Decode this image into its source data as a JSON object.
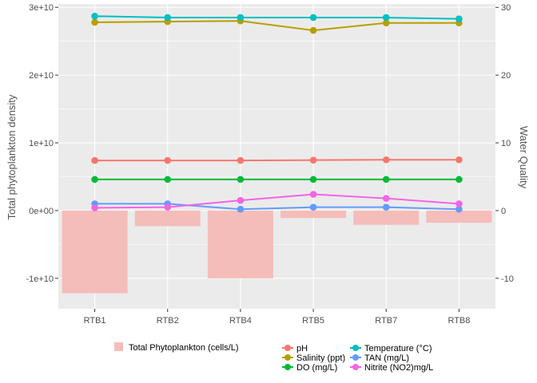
{
  "chart_data": {
    "type": "bar+line",
    "categories": [
      "RTB1",
      "RTB2",
      "RTB4",
      "RTB5",
      "RTB7",
      "RTB8"
    ],
    "bar_series": {
      "name": "Total Phytoplankton (cells/L)",
      "color": "#F4BDBA",
      "values": [
        -12200000000.0,
        -2300000000.0,
        -10000000000.0,
        -1100000000.0,
        -2100000000.0,
        -1800000000.0
      ]
    },
    "line_series": [
      {
        "name": "pH",
        "color": "#F8766D",
        "values": [
          7.4,
          7.4,
          7.4,
          7.45,
          7.5,
          7.5
        ]
      },
      {
        "name": "Salinity (ppt)",
        "color": "#B79F00",
        "values": [
          27.8,
          27.9,
          28.0,
          26.6,
          27.7,
          27.7
        ]
      },
      {
        "name": "DO (mg/L)",
        "color": "#00BA38",
        "values": [
          4.6,
          4.6,
          4.6,
          4.6,
          4.6,
          4.6
        ]
      },
      {
        "name": "Temperature (°C)",
        "color": "#00BFC4",
        "values": [
          28.7,
          28.5,
          28.5,
          28.5,
          28.5,
          28.3
        ]
      },
      {
        "name": "TAN (mg/L)",
        "color": "#619CFF",
        "values": [
          1.0,
          1.0,
          0.2,
          0.5,
          0.5,
          0.2
        ]
      },
      {
        "name": "Nitrite (NO2)mg/L",
        "color": "#F564E3",
        "values": [
          0.4,
          0.5,
          1.5,
          2.4,
          1.8,
          1.0
        ]
      }
    ],
    "y_left": {
      "label": "Total phytoplankton density",
      "lim": [
        -14500000000.0,
        30500000000.0
      ],
      "ticks": [
        -10000000000.0,
        0,
        10000000000.0,
        20000000000.0,
        30000000000.0
      ],
      "tick_labels": [
        "-1e+10",
        "0e+00",
        "1e+10",
        "2e+10",
        "3e+10"
      ]
    },
    "y_right": {
      "label": "Water Quality",
      "lim": [
        -14.5,
        30.5
      ],
      "ticks": [
        -10,
        0,
        10,
        20,
        30
      ],
      "tick_labels": [
        "-10",
        "0",
        "10",
        "20",
        "30"
      ]
    },
    "xlabel": "",
    "grid": true,
    "panel_background": "#EBEBEB",
    "legend_position": "bottom"
  }
}
